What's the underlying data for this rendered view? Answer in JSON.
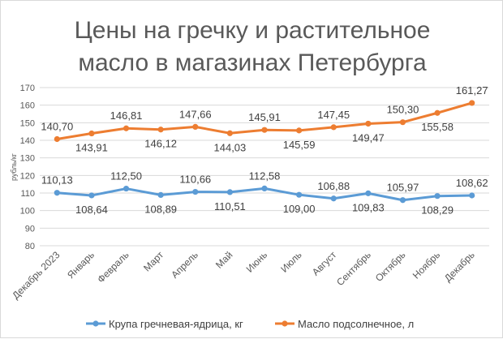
{
  "chart_data": {
    "type": "line",
    "title_line1": "Цены на гречку и растительное",
    "title_line2": "масло в магазинах Петербурга",
    "ylabel": "рубль/кг",
    "ylim": [
      80,
      170
    ],
    "ystep": 10,
    "grid": true,
    "legend_position": "bottom",
    "categories": [
      "Декабрь 2023",
      "Январь",
      "Февраль",
      "Март",
      "Апрель",
      "Май",
      "Июнь",
      "Июль",
      "Август",
      "Сентябрь",
      "Октябрь",
      "Ноябрь",
      "Декабрь"
    ],
    "series": [
      {
        "name": "Крупа гречневая-ядрица,  кг",
        "color": "#5b9bd5",
        "values": [
          110.13,
          108.64,
          112.5,
          108.89,
          110.66,
          110.51,
          112.58,
          109.0,
          106.88,
          109.83,
          105.97,
          108.29,
          108.62
        ],
        "labels": [
          "110,13",
          "108,64",
          "112,50",
          "108,89",
          "110,66",
          "110,51",
          "112,58",
          "109,00",
          "106,88",
          "109,83",
          "105,97",
          "108,29",
          "108,62"
        ],
        "label_pos": [
          "above",
          "below",
          "above",
          "below",
          "above",
          "below",
          "above",
          "below",
          "above",
          "below",
          "above",
          "below",
          "above"
        ]
      },
      {
        "name": "Масло подсолнечное,  л",
        "color": "#ed7d31",
        "values": [
          140.7,
          143.91,
          146.81,
          146.12,
          147.66,
          144.03,
          145.91,
          145.59,
          147.45,
          149.47,
          150.3,
          155.58,
          161.27
        ],
        "labels": [
          "140,70",
          "143,91",
          "146,81",
          "146,12",
          "147,66",
          "144,03",
          "145,91",
          "145,59",
          "147,45",
          "149,47",
          "150,30",
          "155,58",
          "161,27"
        ],
        "label_pos": [
          "above",
          "below",
          "above",
          "below",
          "above",
          "below",
          "above",
          "below",
          "above",
          "below",
          "above",
          "below",
          "above"
        ]
      }
    ]
  }
}
